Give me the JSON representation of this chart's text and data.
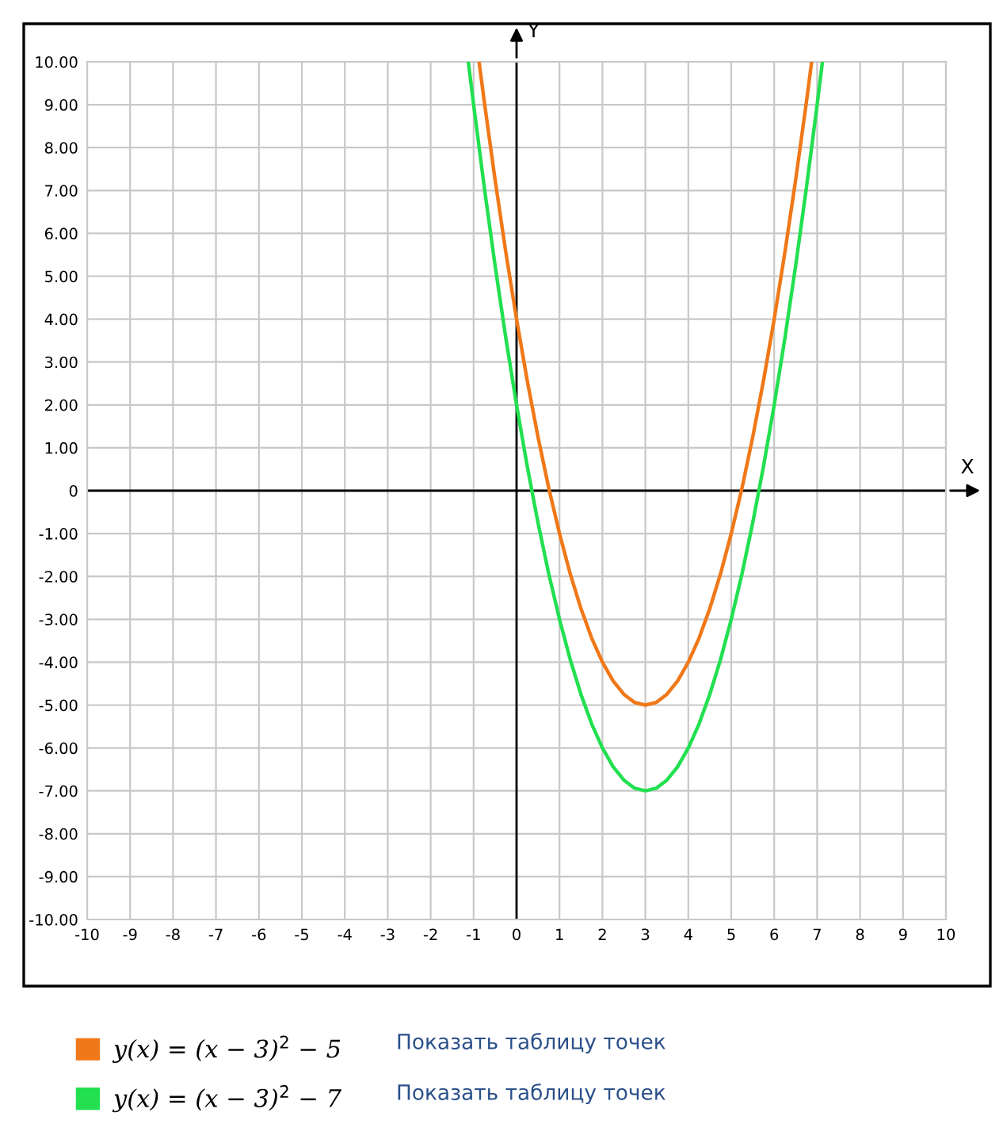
{
  "chart_data": {
    "type": "line",
    "xlabel": "X",
    "ylabel": "Y",
    "xlim": [
      -10,
      10
    ],
    "ylim": [
      -10,
      10
    ],
    "xticks": [
      -10,
      -9,
      -8,
      -7,
      -6,
      -5,
      -4,
      -3,
      -2,
      -1,
      0,
      1,
      2,
      3,
      4,
      5,
      6,
      7,
      8,
      9,
      10
    ],
    "yticks": [
      {
        "value": 10,
        "label": "10.00"
      },
      {
        "value": 9,
        "label": "9.00"
      },
      {
        "value": 8,
        "label": "8.00"
      },
      {
        "value": 7,
        "label": "7.00"
      },
      {
        "value": 6,
        "label": "6.00"
      },
      {
        "value": 5,
        "label": "5.00"
      },
      {
        "value": 4,
        "label": "4.00"
      },
      {
        "value": 3,
        "label": "3.00"
      },
      {
        "value": 2,
        "label": "2.00"
      },
      {
        "value": 1,
        "label": "1.00"
      },
      0,
      {
        "value": -1,
        "label": "-1.00"
      },
      {
        "value": -2,
        "label": "-2.00"
      },
      {
        "value": -3,
        "label": "-3.00"
      },
      {
        "value": -4,
        "label": "-4.00"
      },
      {
        "value": -5,
        "label": "-5.00"
      },
      {
        "value": -6,
        "label": "-6.00"
      },
      {
        "value": -7,
        "label": "-7.00"
      },
      {
        "value": -8,
        "label": "-8.00"
      },
      {
        "value": -9,
        "label": "-9.00"
      },
      {
        "value": -10,
        "label": "-10.00"
      }
    ],
    "grid": true,
    "legend": "bottom",
    "marker": "none",
    "line_style": "solid",
    "series": [
      {
        "name": "y(x) = (x − 3)$^{2}$ − 5",
        "color": "#f07818",
        "x": [
          -0.87,
          -0.75,
          -0.5,
          -0.25,
          0,
          0.25,
          0.5,
          0.75,
          1,
          1.25,
          1.5,
          1.75,
          2,
          2.25,
          2.5,
          2.75,
          3,
          3.25,
          3.5,
          3.75,
          4,
          4.25,
          4.5,
          4.75,
          5,
          5.25,
          5.5,
          5.75,
          6,
          6.25,
          6.5,
          6.75,
          6.87
        ],
        "values": [
          9.98,
          9.06,
          7.25,
          5.56,
          4,
          2.56,
          1.25,
          0.06,
          -1,
          -1.94,
          -2.75,
          -3.44,
          -4,
          -4.44,
          -4.75,
          -4.94,
          -5,
          -4.94,
          -4.75,
          -4.44,
          -4,
          -3.44,
          -2.75,
          -1.94,
          -1,
          0.06,
          1.25,
          2.56,
          4,
          5.56,
          7.25,
          9.06,
          9.98
        ]
      },
      {
        "name": "y(x) = (x − 3)$^{2}$ − 7",
        "color": "#22e050",
        "x": [
          -1.12,
          -1,
          -0.75,
          -0.5,
          -0.25,
          0,
          0.25,
          0.5,
          0.75,
          1,
          1.25,
          1.5,
          1.75,
          2,
          2.25,
          2.5,
          2.75,
          3,
          3.25,
          3.5,
          3.75,
          4,
          4.25,
          4.5,
          4.75,
          5,
          5.25,
          5.5,
          5.75,
          6,
          6.25,
          6.5,
          6.75,
          7,
          7.12
        ],
        "values": [
          9.97,
          9,
          7.06,
          5.25,
          3.56,
          2,
          0.56,
          -0.75,
          -1.94,
          -3,
          -3.94,
          -4.75,
          -5.44,
          -6,
          -6.44,
          -6.75,
          -6.94,
          -7,
          -6.94,
          -6.75,
          -6.44,
          -6,
          -5.44,
          -4.75,
          -3.94,
          -3,
          -1.94,
          -0.75,
          0.56,
          2,
          3.56,
          5.25,
          7.06,
          9,
          9.97
        ]
      }
    ],
    "annotations": [
      "Показать таблицу точек",
      "Показать таблицу точек"
    ]
  }
}
